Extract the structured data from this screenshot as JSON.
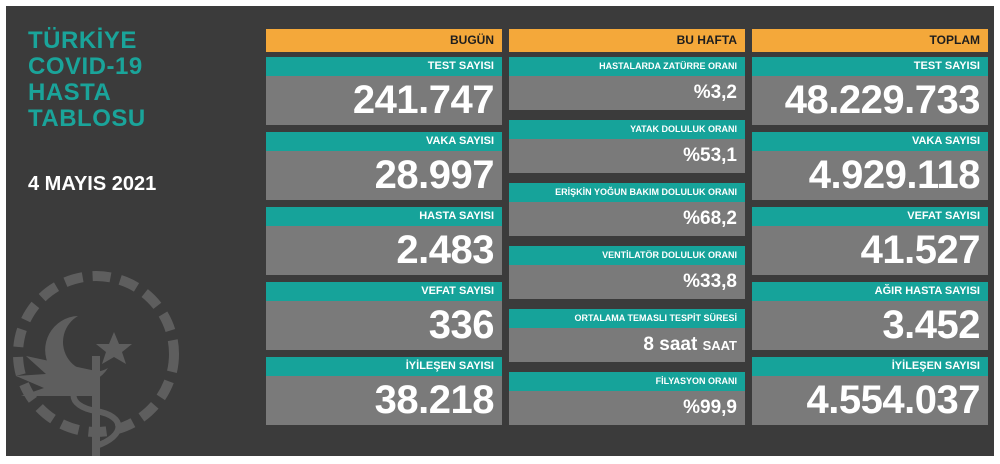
{
  "header": {
    "title_lines": [
      "TÜRKİYE",
      "COVID-19",
      "HASTA",
      "TABLOSU"
    ],
    "date": "4 MAYIS 2021"
  },
  "colors": {
    "board": "#3b3b3b",
    "accent": "#16a39a",
    "header_bar": "#f4a83a",
    "value_bg": "#7a7a7a",
    "title_text": "#1aa49a"
  },
  "icons": {
    "emblem": "ministry-of-health-emblem-icon"
  },
  "columns": {
    "today": {
      "heading": "BUGÜN",
      "cards": [
        {
          "label": "TEST SAYISI",
          "value": "241.747"
        },
        {
          "label": "VAKA SAYISI",
          "value": "28.997"
        },
        {
          "label": "HASTA SAYISI",
          "value": "2.483"
        },
        {
          "label": "VEFAT SAYISI",
          "value": "336"
        },
        {
          "label": "İYİLEŞEN SAYISI",
          "value": "38.218"
        }
      ]
    },
    "week": {
      "heading": "BU HAFTA",
      "cards": [
        {
          "label": "HASTALARDA ZATÜRRE ORANI",
          "value": "%3,2"
        },
        {
          "label": "YATAK DOLULUK ORANI",
          "value": "%53,1"
        },
        {
          "label": "ERİŞKİN YOĞUN BAKIM DOLULUK ORANI",
          "value": "%68,2"
        },
        {
          "label": "VENTİLATÖR DOLULUK ORANI",
          "value": "%33,8"
        },
        {
          "label": "ORTALAMA TEMASLI TESPİT SÜRESİ",
          "value": "8 saat",
          "unit": "SAAT"
        },
        {
          "label": "FİLYASYON ORANI",
          "value": "%99,9"
        }
      ]
    },
    "total": {
      "heading": "TOPLAM",
      "cards": [
        {
          "label": "TEST SAYISI",
          "value": "48.229.733"
        },
        {
          "label": "VAKA SAYISI",
          "value": "4.929.118"
        },
        {
          "label": "VEFAT SAYISI",
          "value": "41.527"
        },
        {
          "label": "AĞIR HASTA SAYISI",
          "value": "3.452"
        },
        {
          "label": "İYİLEŞEN SAYISI",
          "value": "4.554.037"
        }
      ]
    }
  }
}
